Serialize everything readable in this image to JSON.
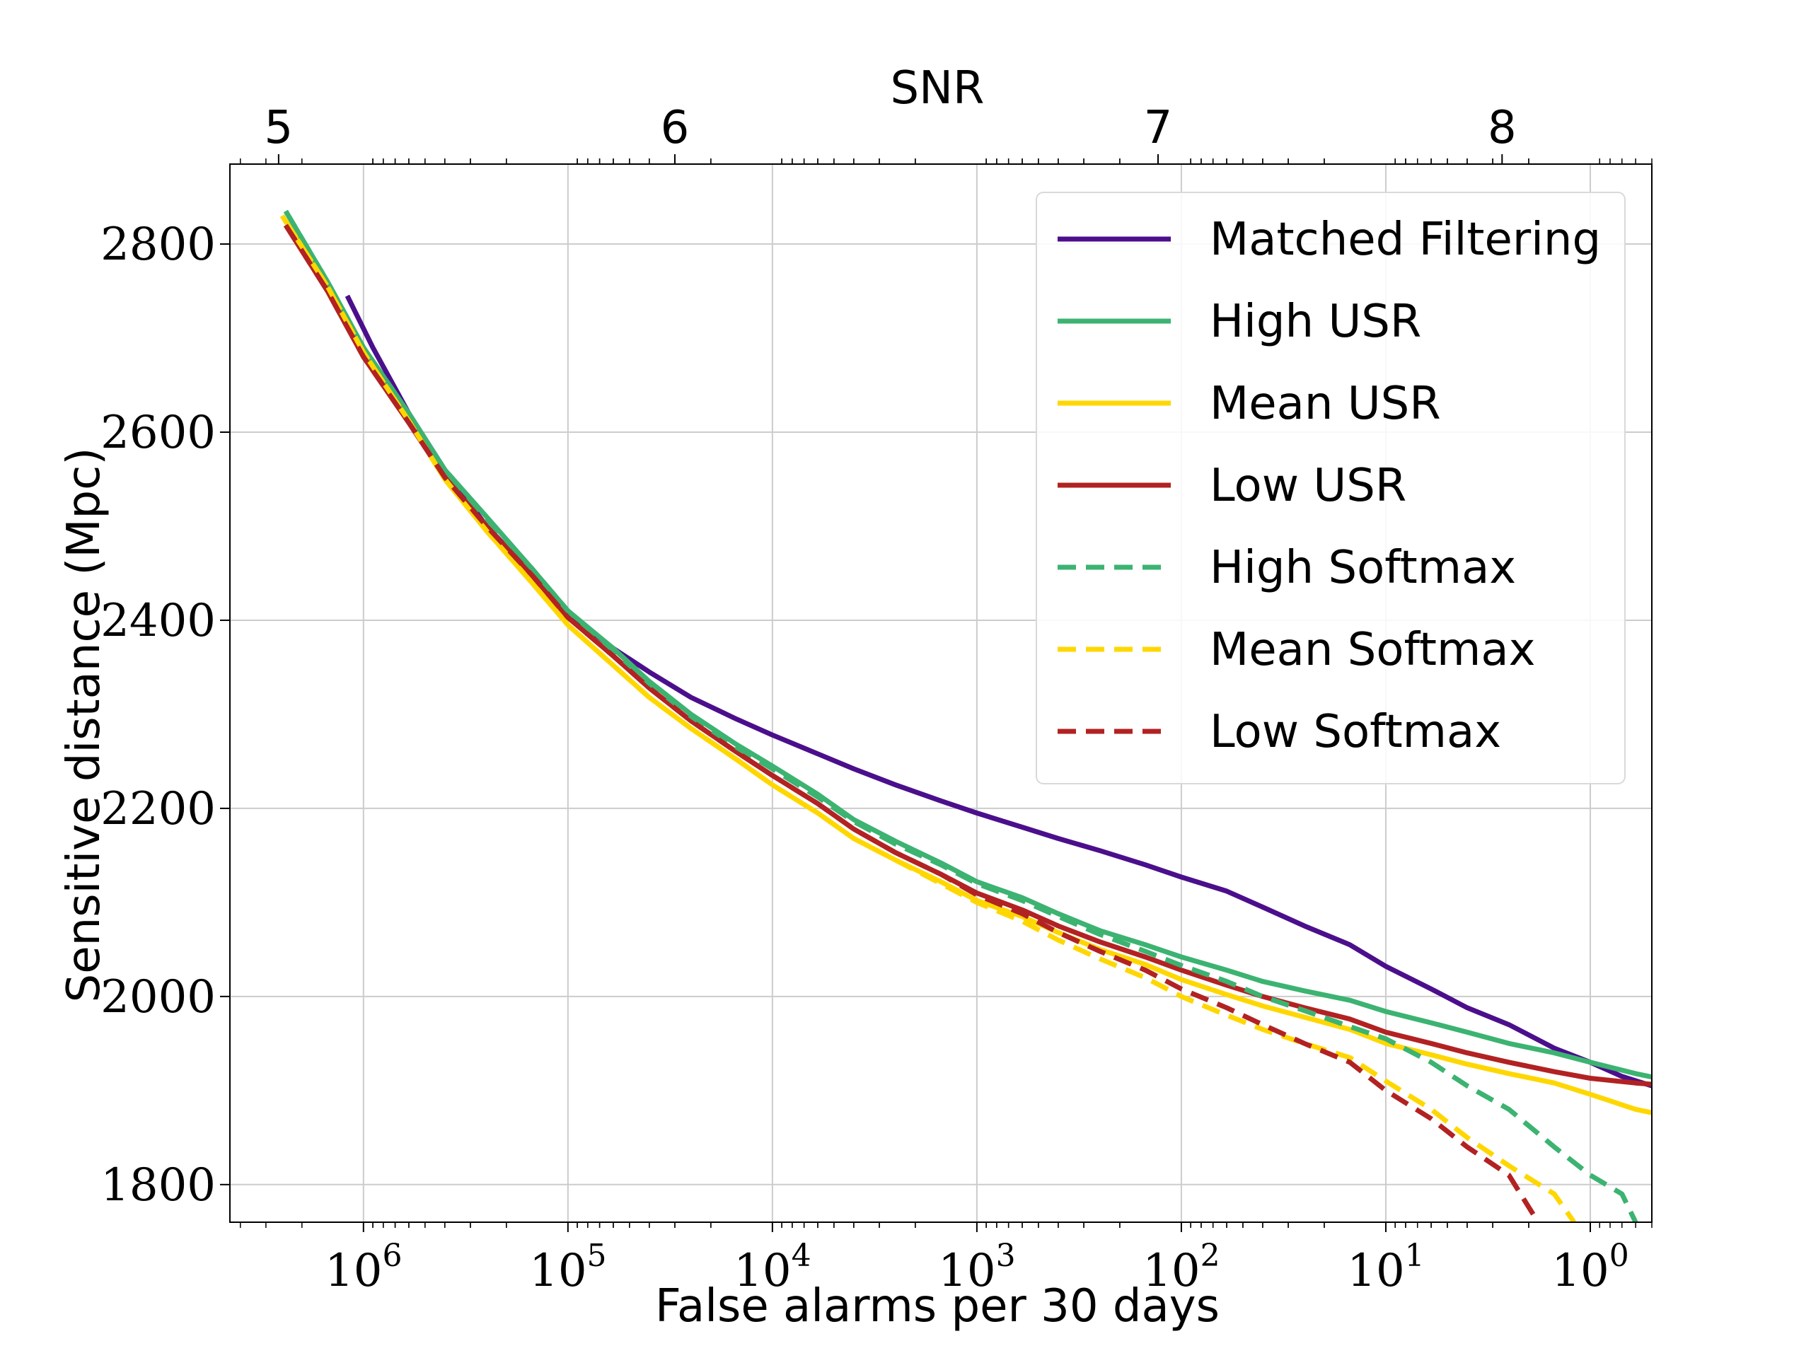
{
  "chart_data": {
    "type": "line",
    "xlabel": "False alarms per 30 days",
    "ylabel": "Sensitive distance (Mpc)",
    "top_axis_label": "SNR",
    "x_scale": "log",
    "x_reversed": true,
    "xlim": [
      4500000,
      0.5
    ],
    "ylim": [
      1760,
      2885
    ],
    "x_ticks": [
      {
        "value": 1000000,
        "base": "10",
        "exp": "6"
      },
      {
        "value": 100000,
        "base": "10",
        "exp": "5"
      },
      {
        "value": 10000,
        "base": "10",
        "exp": "4"
      },
      {
        "value": 1000,
        "base": "10",
        "exp": "3"
      },
      {
        "value": 100,
        "base": "10",
        "exp": "2"
      },
      {
        "value": 10,
        "base": "10",
        "exp": "1"
      },
      {
        "value": 1,
        "base": "10",
        "exp": "0"
      }
    ],
    "y_ticks": [
      {
        "value": 1800,
        "label": "1800"
      },
      {
        "value": 2000,
        "label": "2000"
      },
      {
        "value": 2200,
        "label": "2200"
      },
      {
        "value": 2400,
        "label": "2400"
      },
      {
        "value": 2600,
        "label": "2600"
      },
      {
        "value": 2800,
        "label": "2800"
      }
    ],
    "top_ticks": [
      {
        "label": "5",
        "x_value": 2600000
      },
      {
        "label": "6",
        "x_value": 30000
      },
      {
        "label": "7",
        "x_value": 130
      },
      {
        "label": "8",
        "x_value": 2.7
      }
    ],
    "grid": true,
    "legend_position": "top-right",
    "series": [
      {
        "name": "Matched Filtering",
        "color": "#4b0f8c",
        "dash": false,
        "points": [
          [
            1200000,
            2745
          ],
          [
            900000,
            2690
          ],
          [
            600000,
            2620
          ],
          [
            400000,
            2560
          ],
          [
            250000,
            2500
          ],
          [
            150000,
            2450
          ],
          [
            100000,
            2408
          ],
          [
            60000,
            2370
          ],
          [
            40000,
            2345
          ],
          [
            25000,
            2318
          ],
          [
            15000,
            2295
          ],
          [
            10000,
            2278
          ],
          [
            6000,
            2258
          ],
          [
            4000,
            2242
          ],
          [
            2500,
            2225
          ],
          [
            1500,
            2208
          ],
          [
            1000,
            2195
          ],
          [
            600,
            2180
          ],
          [
            400,
            2168
          ],
          [
            250,
            2155
          ],
          [
            150,
            2140
          ],
          [
            100,
            2127
          ],
          [
            60,
            2112
          ],
          [
            40,
            2095
          ],
          [
            25,
            2075
          ],
          [
            15,
            2055
          ],
          [
            10,
            2032
          ],
          [
            6,
            2008
          ],
          [
            4,
            1988
          ],
          [
            2.5,
            1970
          ],
          [
            1.5,
            1945
          ],
          [
            1,
            1930
          ],
          [
            0.7,
            1915
          ],
          [
            0.5,
            1905
          ],
          [
            0.35,
            1898
          ],
          [
            0.25,
            1890
          ],
          [
            0.15,
            1885
          ],
          [
            0.1,
            1883
          ],
          [
            0.06,
            1882
          ],
          [
            0.04,
            1882
          ]
        ]
      },
      {
        "name": "High USR",
        "color": "#3cb371",
        "dash": false,
        "points": [
          [
            2400000,
            2835
          ],
          [
            1500000,
            2760
          ],
          [
            1000000,
            2690
          ],
          [
            600000,
            2620
          ],
          [
            400000,
            2560
          ],
          [
            250000,
            2510
          ],
          [
            150000,
            2455
          ],
          [
            100000,
            2410
          ],
          [
            60000,
            2370
          ],
          [
            40000,
            2335
          ],
          [
            25000,
            2300
          ],
          [
            15000,
            2268
          ],
          [
            10000,
            2245
          ],
          [
            6000,
            2215
          ],
          [
            4000,
            2188
          ],
          [
            2500,
            2165
          ],
          [
            1500,
            2142
          ],
          [
            1000,
            2122
          ],
          [
            600,
            2105
          ],
          [
            400,
            2088
          ],
          [
            250,
            2070
          ],
          [
            150,
            2055
          ],
          [
            100,
            2042
          ],
          [
            60,
            2028
          ],
          [
            40,
            2016
          ],
          [
            25,
            2006
          ],
          [
            15,
            1996
          ],
          [
            10,
            1984
          ],
          [
            6,
            1972
          ],
          [
            4,
            1962
          ],
          [
            2.5,
            1950
          ],
          [
            1.5,
            1940
          ],
          [
            1,
            1930
          ],
          [
            0.6,
            1918
          ],
          [
            0.4,
            1910
          ],
          [
            0.25,
            1905
          ],
          [
            0.15,
            1898
          ],
          [
            0.1,
            1892
          ],
          [
            0.06,
            1888
          ],
          [
            0.04,
            1888
          ]
        ]
      },
      {
        "name": "Mean USR",
        "color": "#ffd700",
        "dash": false,
        "points": [
          [
            2500000,
            2830
          ],
          [
            1500000,
            2755
          ],
          [
            1000000,
            2685
          ],
          [
            600000,
            2612
          ],
          [
            400000,
            2550
          ],
          [
            250000,
            2495
          ],
          [
            150000,
            2440
          ],
          [
            100000,
            2395
          ],
          [
            60000,
            2352
          ],
          [
            40000,
            2318
          ],
          [
            25000,
            2285
          ],
          [
            15000,
            2252
          ],
          [
            10000,
            2225
          ],
          [
            6000,
            2195
          ],
          [
            4000,
            2168
          ],
          [
            2500,
            2145
          ],
          [
            1500,
            2122
          ],
          [
            1000,
            2102
          ],
          [
            600,
            2085
          ],
          [
            400,
            2068
          ],
          [
            250,
            2050
          ],
          [
            150,
            2034
          ],
          [
            100,
            2018
          ],
          [
            60,
            2002
          ],
          [
            40,
            1990
          ],
          [
            25,
            1978
          ],
          [
            15,
            1965
          ],
          [
            10,
            1950
          ],
          [
            6,
            1938
          ],
          [
            4,
            1928
          ],
          [
            2.5,
            1918
          ],
          [
            1.5,
            1908
          ],
          [
            1,
            1896
          ],
          [
            0.6,
            1880
          ],
          [
            0.4,
            1872
          ],
          [
            0.25,
            1862
          ],
          [
            0.15,
            1858
          ],
          [
            0.1,
            1854
          ],
          [
            0.06,
            1852
          ],
          [
            0.04,
            1810
          ]
        ]
      },
      {
        "name": "Low USR",
        "color": "#b22222",
        "dash": false,
        "points": [
          [
            2400000,
            2820
          ],
          [
            1500000,
            2750
          ],
          [
            1000000,
            2680
          ],
          [
            600000,
            2610
          ],
          [
            400000,
            2552
          ],
          [
            250000,
            2500
          ],
          [
            150000,
            2448
          ],
          [
            100000,
            2403
          ],
          [
            60000,
            2362
          ],
          [
            40000,
            2328
          ],
          [
            25000,
            2293
          ],
          [
            15000,
            2260
          ],
          [
            10000,
            2235
          ],
          [
            6000,
            2205
          ],
          [
            4000,
            2178
          ],
          [
            2500,
            2153
          ],
          [
            1500,
            2130
          ],
          [
            1000,
            2110
          ],
          [
            600,
            2092
          ],
          [
            400,
            2075
          ],
          [
            250,
            2058
          ],
          [
            150,
            2042
          ],
          [
            100,
            2028
          ],
          [
            60,
            2012
          ],
          [
            40,
            2000
          ],
          [
            25,
            1988
          ],
          [
            15,
            1976
          ],
          [
            10,
            1962
          ],
          [
            6,
            1950
          ],
          [
            4,
            1940
          ],
          [
            2.5,
            1930
          ],
          [
            1.5,
            1920
          ],
          [
            1,
            1913
          ],
          [
            0.6,
            1908
          ],
          [
            0.4,
            1905
          ],
          [
            0.25,
            1900
          ],
          [
            0.15,
            1890
          ],
          [
            0.1,
            1855
          ],
          [
            0.06,
            1853
          ],
          [
            0.04,
            1853
          ]
        ]
      },
      {
        "name": "High Softmax",
        "color": "#3cb371",
        "dash": true,
        "points": [
          [
            2400000,
            2835
          ],
          [
            1500000,
            2760
          ],
          [
            1000000,
            2690
          ],
          [
            600000,
            2620
          ],
          [
            400000,
            2560
          ],
          [
            250000,
            2508
          ],
          [
            150000,
            2455
          ],
          [
            100000,
            2410
          ],
          [
            60000,
            2368
          ],
          [
            40000,
            2333
          ],
          [
            25000,
            2298
          ],
          [
            15000,
            2265
          ],
          [
            10000,
            2242
          ],
          [
            6000,
            2212
          ],
          [
            4000,
            2186
          ],
          [
            2500,
            2162
          ],
          [
            1500,
            2140
          ],
          [
            1000,
            2120
          ],
          [
            600,
            2102
          ],
          [
            400,
            2085
          ],
          [
            250,
            2066
          ],
          [
            150,
            2048
          ],
          [
            100,
            2033
          ],
          [
            60,
            2016
          ],
          [
            40,
            2000
          ],
          [
            25,
            1985
          ],
          [
            15,
            1968
          ],
          [
            10,
            1955
          ],
          [
            6,
            1930
          ],
          [
            4,
            1905
          ],
          [
            2.5,
            1880
          ],
          [
            1.5,
            1840
          ],
          [
            1,
            1810
          ],
          [
            0.7,
            1790
          ],
          [
            0.6,
            1760
          ]
        ]
      },
      {
        "name": "Mean Softmax",
        "color": "#ffd700",
        "dash": true,
        "points": [
          [
            2500000,
            2830
          ],
          [
            1500000,
            2755
          ],
          [
            1000000,
            2685
          ],
          [
            600000,
            2612
          ],
          [
            400000,
            2550
          ],
          [
            250000,
            2495
          ],
          [
            150000,
            2440
          ],
          [
            100000,
            2395
          ],
          [
            60000,
            2352
          ],
          [
            40000,
            2318
          ],
          [
            25000,
            2285
          ],
          [
            15000,
            2252
          ],
          [
            10000,
            2225
          ],
          [
            6000,
            2195
          ],
          [
            4000,
            2168
          ],
          [
            2500,
            2145
          ],
          [
            1500,
            2120
          ],
          [
            1000,
            2100
          ],
          [
            600,
            2080
          ],
          [
            400,
            2060
          ],
          [
            250,
            2040
          ],
          [
            150,
            2020
          ],
          [
            100,
            2000
          ],
          [
            60,
            1980
          ],
          [
            40,
            1965
          ],
          [
            25,
            1950
          ],
          [
            15,
            1935
          ],
          [
            10,
            1910
          ],
          [
            6,
            1880
          ],
          [
            4,
            1850
          ],
          [
            2.5,
            1820
          ],
          [
            1.5,
            1790
          ],
          [
            1.2,
            1760
          ]
        ]
      },
      {
        "name": "Low Softmax",
        "color": "#b22222",
        "dash": true,
        "points": [
          [
            2400000,
            2820
          ],
          [
            1500000,
            2750
          ],
          [
            1000000,
            2680
          ],
          [
            600000,
            2610
          ],
          [
            400000,
            2552
          ],
          [
            250000,
            2500
          ],
          [
            150000,
            2448
          ],
          [
            100000,
            2403
          ],
          [
            60000,
            2362
          ],
          [
            40000,
            2328
          ],
          [
            25000,
            2293
          ],
          [
            15000,
            2260
          ],
          [
            10000,
            2235
          ],
          [
            6000,
            2205
          ],
          [
            4000,
            2178
          ],
          [
            2500,
            2153
          ],
          [
            1500,
            2130
          ],
          [
            1000,
            2108
          ],
          [
            600,
            2088
          ],
          [
            400,
            2068
          ],
          [
            250,
            2048
          ],
          [
            150,
            2028
          ],
          [
            100,
            2008
          ],
          [
            60,
            1988
          ],
          [
            40,
            1970
          ],
          [
            25,
            1950
          ],
          [
            15,
            1930
          ],
          [
            10,
            1900
          ],
          [
            6,
            1870
          ],
          [
            4,
            1840
          ],
          [
            2.5,
            1810
          ],
          [
            1.8,
            1760
          ]
        ]
      }
    ]
  }
}
